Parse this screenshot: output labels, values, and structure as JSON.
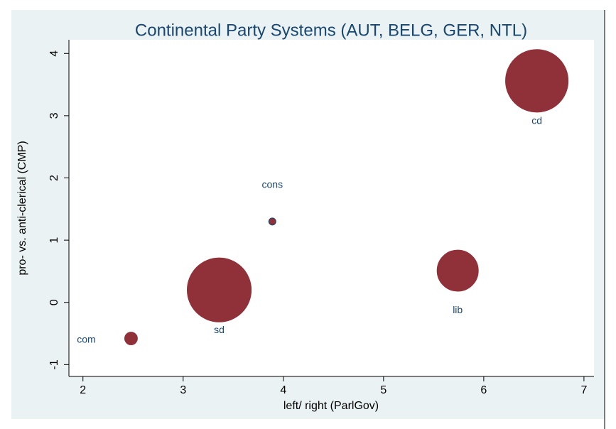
{
  "chart_data": {
    "type": "bubble",
    "title": "Continental Party Systems (AUT, BELG, GER, NTL)",
    "x_label": "left/ right (ParlGov)",
    "y_label": "pro- vs. anti-clerical (CMP)",
    "labels": [
      "cd",
      "sd",
      "lib",
      "com",
      "cons"
    ],
    "x": [
      6.53,
      3.36,
      5.74,
      2.48,
      3.89
    ],
    "y": [
      3.56,
      0.2,
      0.51,
      -0.58,
      1.3
    ],
    "sizes": [
      19.4,
      20.3,
      8.4,
      0.8,
      0.25
    ],
    "color": "#903038",
    "label_color": "#1a476f",
    "xlim": [
      1.86,
      7.1
    ],
    "xticks": [
      2,
      3,
      4,
      5,
      6,
      7
    ],
    "ylim": [
      -1.19,
      4.22
    ],
    "yticks": [
      -1,
      0,
      1,
      2,
      3,
      4
    ]
  }
}
